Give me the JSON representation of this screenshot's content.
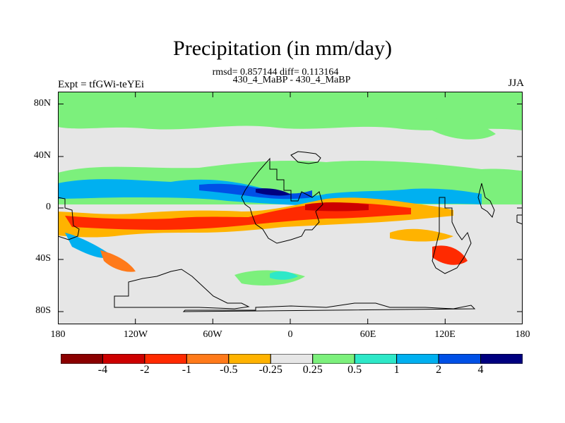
{
  "title": "Precipitation (in mm/day)",
  "stats": "rmsd= 0.857144 diff= 0.113164",
  "difference_label": "430_4_MaBP - 430_4_MaBP",
  "experiment": "Expt = tfGWi-teYEi",
  "season": "JJA",
  "lat_ticks": [
    "80N",
    "40N",
    "0",
    "40S",
    "80S"
  ],
  "lon_ticks": [
    "180",
    "120W",
    "60W",
    "0",
    "60E",
    "120E",
    "180"
  ],
  "colorbar": {
    "colors": [
      "#8b0000",
      "#cd0000",
      "#ff2a00",
      "#ff7a1a",
      "#ffb300",
      "#e6e6e6",
      "#7cf07c",
      "#2ee8c8",
      "#00b0f0",
      "#0050e6",
      "#000080"
    ],
    "labels": [
      "-4",
      "-2",
      "-1",
      "-0.5",
      "-0.25",
      "0.25",
      "0.5",
      "1",
      "2",
      "4"
    ]
  }
}
